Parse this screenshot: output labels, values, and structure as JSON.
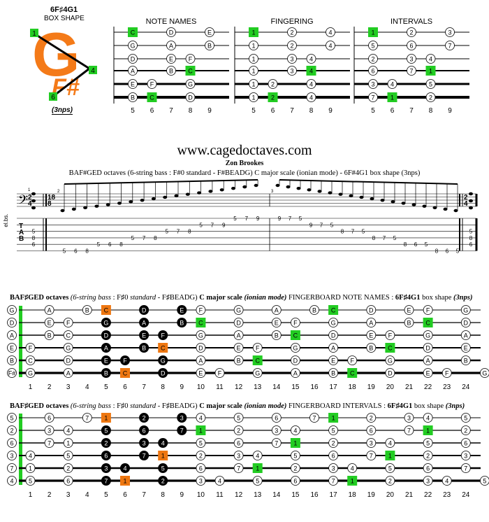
{
  "shape": {
    "title": "6F♯4G1",
    "subtitle": "BOX SHAPE",
    "logo_letter": "G",
    "logo_suffix": "F#",
    "markers": [
      "1",
      "4",
      "6"
    ],
    "nps": "(3nps)"
  },
  "mini_diagrams": {
    "frets": [
      "5",
      "6",
      "7",
      "8",
      "9"
    ],
    "strings": [
      0,
      1,
      2,
      3,
      4,
      5
    ],
    "names": {
      "title": "NOTE NAMES",
      "dots": [
        {
          "s": 0,
          "f": 0,
          "t": "C",
          "g": true
        },
        {
          "s": 0,
          "f": 2,
          "t": "D"
        },
        {
          "s": 0,
          "f": 4,
          "t": "E"
        },
        {
          "s": 1,
          "f": 0,
          "t": "G"
        },
        {
          "s": 1,
          "f": 2,
          "t": "A"
        },
        {
          "s": 1,
          "f": 4,
          "t": "B"
        },
        {
          "s": 2,
          "f": 0,
          "t": "D"
        },
        {
          "s": 2,
          "f": 2,
          "t": "E"
        },
        {
          "s": 2,
          "f": 3,
          "t": "F"
        },
        {
          "s": 3,
          "f": 0,
          "t": "A"
        },
        {
          "s": 3,
          "f": 2,
          "t": "B"
        },
        {
          "s": 3,
          "f": 3,
          "t": "C",
          "g": true
        },
        {
          "s": 4,
          "f": 0,
          "t": "E"
        },
        {
          "s": 4,
          "f": 1,
          "t": "F"
        },
        {
          "s": 4,
          "f": 3,
          "t": "G"
        },
        {
          "s": 5,
          "f": 0,
          "t": "B"
        },
        {
          "s": 5,
          "f": 1,
          "t": "C",
          "g": true
        },
        {
          "s": 5,
          "f": 3,
          "t": "D"
        }
      ]
    },
    "fingering": {
      "title": "FINGERING",
      "dots": [
        {
          "s": 0,
          "f": 0,
          "t": "1",
          "g": true
        },
        {
          "s": 0,
          "f": 2,
          "t": "2"
        },
        {
          "s": 0,
          "f": 4,
          "t": "4"
        },
        {
          "s": 1,
          "f": 0,
          "t": "1"
        },
        {
          "s": 1,
          "f": 2,
          "t": "2"
        },
        {
          "s": 1,
          "f": 4,
          "t": "4"
        },
        {
          "s": 2,
          "f": 0,
          "t": "1"
        },
        {
          "s": 2,
          "f": 2,
          "t": "3"
        },
        {
          "s": 2,
          "f": 3,
          "t": "4"
        },
        {
          "s": 3,
          "f": 0,
          "t": "1"
        },
        {
          "s": 3,
          "f": 2,
          "t": "3"
        },
        {
          "s": 3,
          "f": 3,
          "t": "4",
          "g": true
        },
        {
          "s": 4,
          "f": 0,
          "t": "1"
        },
        {
          "s": 4,
          "f": 1,
          "t": "2"
        },
        {
          "s": 4,
          "f": 3,
          "t": "4"
        },
        {
          "s": 5,
          "f": 0,
          "t": "1"
        },
        {
          "s": 5,
          "f": 1,
          "t": "2",
          "g": true
        },
        {
          "s": 5,
          "f": 3,
          "t": "4"
        }
      ]
    },
    "intervals": {
      "title": "INTERVALS",
      "dots": [
        {
          "s": 0,
          "f": 0,
          "t": "1",
          "g": true
        },
        {
          "s": 0,
          "f": 2,
          "t": "2"
        },
        {
          "s": 0,
          "f": 4,
          "t": "3"
        },
        {
          "s": 1,
          "f": 0,
          "t": "5"
        },
        {
          "s": 1,
          "f": 2,
          "t": "6"
        },
        {
          "s": 1,
          "f": 4,
          "t": "7"
        },
        {
          "s": 2,
          "f": 0,
          "t": "2"
        },
        {
          "s": 2,
          "f": 2,
          "t": "3"
        },
        {
          "s": 2,
          "f": 3,
          "t": "4"
        },
        {
          "s": 3,
          "f": 0,
          "t": "6"
        },
        {
          "s": 3,
          "f": 2,
          "t": "7"
        },
        {
          "s": 3,
          "f": 3,
          "t": "1",
          "g": true
        },
        {
          "s": 4,
          "f": 0,
          "t": "3"
        },
        {
          "s": 4,
          "f": 1,
          "t": "4"
        },
        {
          "s": 4,
          "f": 3,
          "t": "5"
        },
        {
          "s": 5,
          "f": 0,
          "t": "7"
        },
        {
          "s": 5,
          "f": 1,
          "t": "1",
          "g": true
        },
        {
          "s": 5,
          "f": 3,
          "t": "2"
        }
      ]
    }
  },
  "score": {
    "site": "www.cagedoctaves.com",
    "author": "Zon Brookes",
    "description": "BAF#GED octaves (6-string bass : F#0 standard - F#BEADG) C major scale (ionian mode) - 6F#4G1 box shape (3nps)",
    "instrument": "el.bs.",
    "tab_letters": [
      "T",
      "A",
      "B"
    ],
    "time_sig_start": [
      "2",
      "4"
    ],
    "time_sig_mid": [
      "18",
      "8"
    ],
    "time_sig_end": [
      "2",
      "4"
    ],
    "measure_numbers": [
      "1",
      "2",
      "3"
    ],
    "first_chord": [
      "5",
      "8",
      "6"
    ],
    "last_chord": [
      "5",
      "8",
      "6"
    ],
    "run_up": [
      {
        "s": 5,
        "n": "5"
      },
      {
        "s": 5,
        "n": "6"
      },
      {
        "s": 5,
        "n": "8"
      },
      {
        "s": 4,
        "n": "5"
      },
      {
        "s": 4,
        "n": "6"
      },
      {
        "s": 4,
        "n": "8"
      },
      {
        "s": 3,
        "n": "5"
      },
      {
        "s": 3,
        "n": "7"
      },
      {
        "s": 3,
        "n": "8"
      },
      {
        "s": 2,
        "n": "5"
      },
      {
        "s": 2,
        "n": "7"
      },
      {
        "s": 2,
        "n": "8"
      },
      {
        "s": 1,
        "n": "5"
      },
      {
        "s": 1,
        "n": "7"
      },
      {
        "s": 1,
        "n": "9"
      },
      {
        "s": 0,
        "n": "5"
      },
      {
        "s": 0,
        "n": "7"
      },
      {
        "s": 0,
        "n": "9"
      }
    ],
    "run_down": [
      {
        "s": 0,
        "n": "9"
      },
      {
        "s": 0,
        "n": "7"
      },
      {
        "s": 0,
        "n": "5"
      },
      {
        "s": 1,
        "n": "9"
      },
      {
        "s": 1,
        "n": "7"
      },
      {
        "s": 1,
        "n": "5"
      },
      {
        "s": 2,
        "n": "8"
      },
      {
        "s": 2,
        "n": "7"
      },
      {
        "s": 2,
        "n": "5"
      },
      {
        "s": 3,
        "n": "8"
      },
      {
        "s": 3,
        "n": "7"
      },
      {
        "s": 3,
        "n": "5"
      },
      {
        "s": 4,
        "n": "8"
      },
      {
        "s": 4,
        "n": "6"
      },
      {
        "s": 4,
        "n": "5"
      },
      {
        "s": 5,
        "n": "8"
      },
      {
        "s": 5,
        "n": "6"
      },
      {
        "s": 5,
        "n": "5"
      }
    ]
  },
  "fingerboard_notes": {
    "title_a": "BAF♯GED octaves",
    "title_b": "(6-string bass",
    "title_c": ": F♯0",
    "title_d": "standard",
    "title_e": "- F♯BEADG)",
    "title_f": "C major scale",
    "title_g": "(ionian mode)",
    "title_h": "FINGERBOARD NOTE NAMES :",
    "title_i": "6F♯4G1",
    "title_j": "box shape",
    "title_k": "(3nps)",
    "open": [
      "G",
      "D",
      "A",
      "E",
      "B",
      "F#"
    ],
    "fret_numbers": [
      "1",
      "2",
      "3",
      "4",
      "5",
      "6",
      "7",
      "8",
      "9",
      "10",
      "11",
      "12",
      "13",
      "14",
      "15",
      "16",
      "17",
      "18",
      "19",
      "20",
      "21",
      "22",
      "23",
      "24"
    ],
    "rows": [
      [
        "",
        "A",
        "",
        "B",
        "C",
        "",
        "D",
        "",
        "E",
        "F",
        "",
        "G",
        "",
        "A",
        "",
        "B",
        "C",
        "",
        "D",
        "",
        "E",
        "F",
        "",
        "G"
      ],
      [
        "",
        "E",
        "F",
        "",
        "G",
        "",
        "A",
        "",
        "B",
        "C",
        "",
        "D",
        "",
        "E",
        "F",
        "",
        "G",
        "",
        "A",
        "",
        "B",
        "C",
        "",
        "D"
      ],
      [
        "",
        "B",
        "C",
        "",
        "D",
        "",
        "E",
        "F",
        "",
        "G",
        "",
        "A",
        "",
        "B",
        "C",
        "",
        "D",
        "",
        "E",
        "F",
        "",
        "G",
        "",
        "A"
      ],
      [
        "F",
        "",
        "G",
        "",
        "A",
        "",
        "B",
        "C",
        "",
        "D",
        "",
        "E",
        "F",
        "",
        "G",
        "",
        "A",
        "",
        "B",
        "C",
        "",
        "D",
        "",
        "E"
      ],
      [
        "C",
        "",
        "D",
        "",
        "E",
        "F",
        "",
        "G",
        "",
        "A",
        "",
        "B",
        "C",
        "",
        "D",
        "",
        "E",
        "F",
        "",
        "G",
        "",
        "A",
        "",
        "B"
      ],
      [
        "G",
        "",
        "A",
        "",
        "B",
        "C",
        "",
        "D",
        "",
        "E",
        "F",
        "",
        "G",
        "",
        "A",
        "",
        "B",
        "C",
        "",
        "D",
        "",
        "E",
        "F",
        "",
        "G"
      ]
    ]
  },
  "fingerboard_intervals": {
    "title_h": "FINGERBOARD INTERVALS :",
    "open": [
      "5",
      "2",
      "6",
      "3",
      "7",
      "4"
    ],
    "rows": [
      [
        "",
        "6",
        "",
        "7",
        "1",
        "",
        "2",
        "",
        "3",
        "4",
        "",
        "5",
        "",
        "6",
        "",
        "7",
        "1",
        "",
        "2",
        "",
        "3",
        "4",
        "",
        "5"
      ],
      [
        "",
        "3",
        "4",
        "",
        "5",
        "",
        "6",
        "",
        "7",
        "1",
        "",
        "2",
        "",
        "3",
        "4",
        "",
        "5",
        "",
        "6",
        "",
        "7",
        "1",
        "",
        "2"
      ],
      [
        "",
        "7",
        "1",
        "",
        "2",
        "",
        "3",
        "4",
        "",
        "5",
        "",
        "6",
        "",
        "7",
        "1",
        "",
        "2",
        "",
        "3",
        "4",
        "",
        "5",
        "",
        "6"
      ],
      [
        "4",
        "",
        "5",
        "",
        "6",
        "",
        "7",
        "1",
        "",
        "2",
        "",
        "3",
        "4",
        "",
        "5",
        "",
        "6",
        "",
        "7",
        "1",
        "",
        "2",
        "",
        "3"
      ],
      [
        "1",
        "",
        "2",
        "",
        "3",
        "4",
        "",
        "5",
        "",
        "6",
        "",
        "7",
        "1",
        "",
        "2",
        "",
        "3",
        "4",
        "",
        "5",
        "",
        "6",
        "",
        "7"
      ],
      [
        "5",
        "",
        "6",
        "",
        "7",
        "1",
        "",
        "2",
        "",
        "3",
        "4",
        "",
        "5",
        "",
        "6",
        "",
        "7",
        "1",
        "",
        "2",
        "",
        "3",
        "4",
        "",
        "5"
      ]
    ]
  },
  "colors": {
    "green": "#22cc22",
    "orange": "#ee7711",
    "black": "#000000",
    "line": "#000000"
  }
}
